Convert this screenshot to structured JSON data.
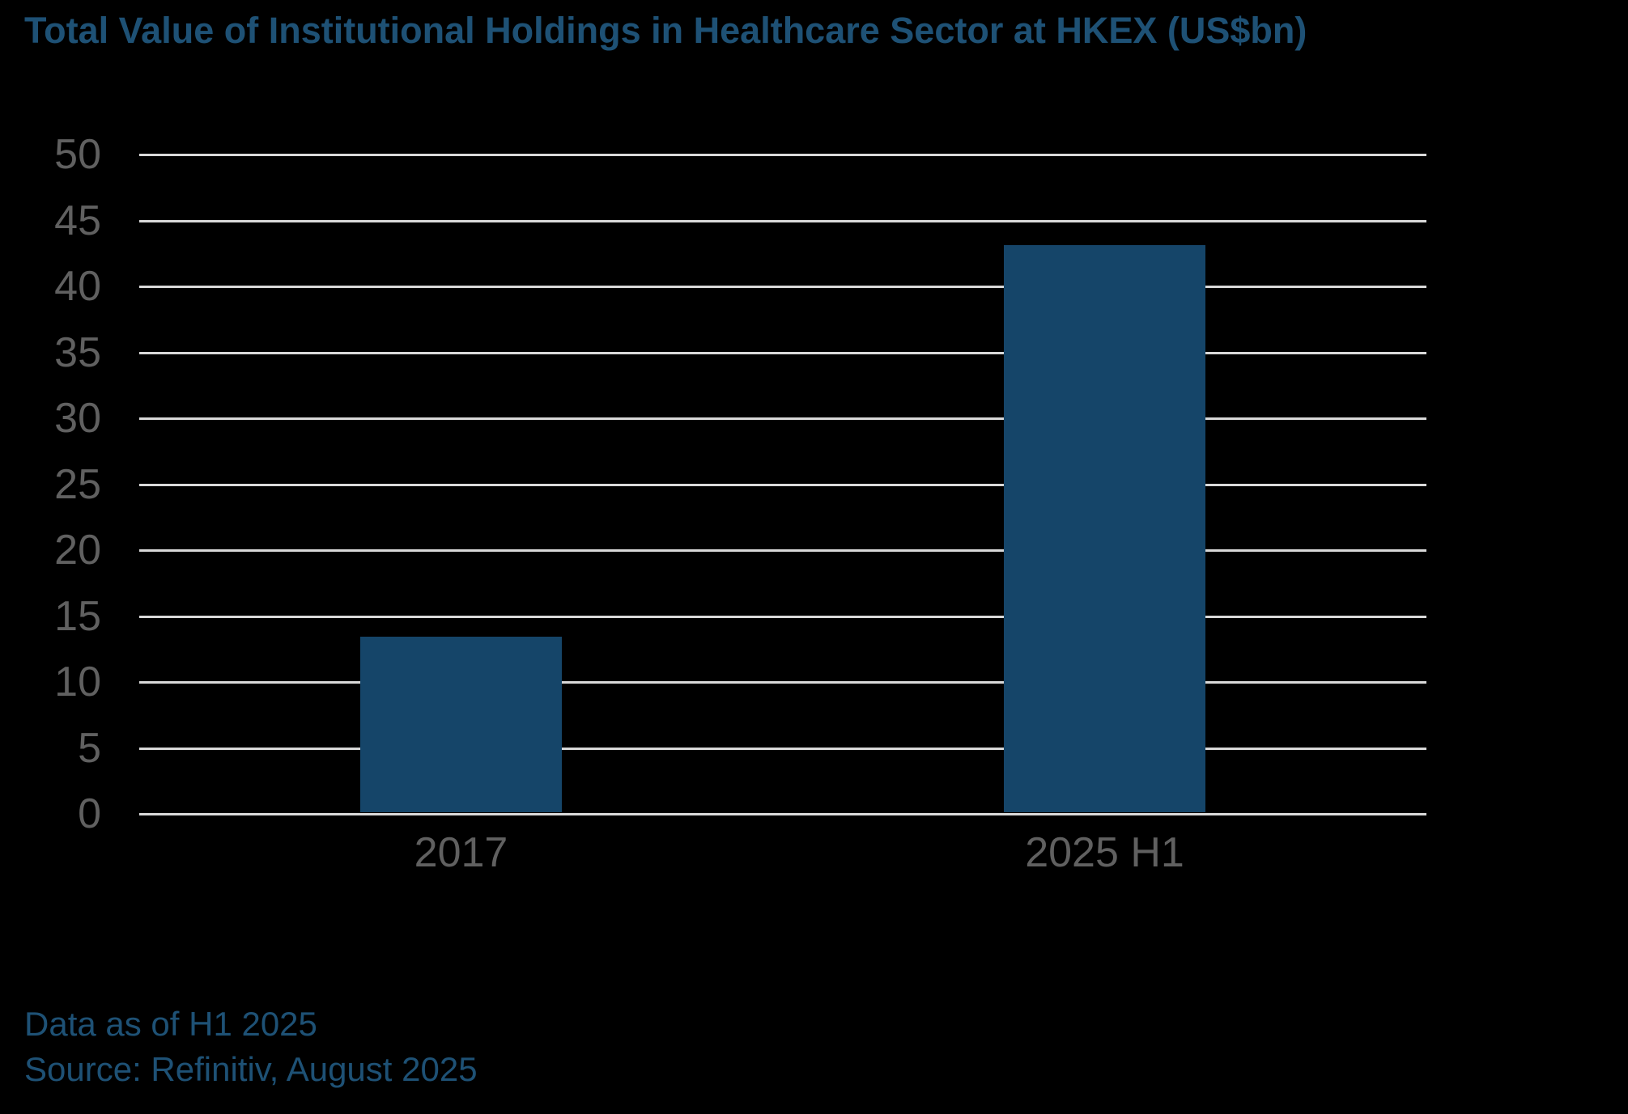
{
  "title": "Total Value of Institutional Holdings in Healthcare Sector at HKEX (US$bn)",
  "footer": {
    "line1": "Data as of H1 2025",
    "line2": "Source: Refinitiv, August 2025"
  },
  "colors": {
    "background": "#000000",
    "bar": "#154569",
    "accent_text": "#1E5175",
    "axis_label": "#606060",
    "gridline": "#D9D9D9"
  },
  "chart_data": {
    "type": "bar",
    "categories": [
      "2017",
      "2025 H1"
    ],
    "values": [
      13.3,
      43
    ],
    "title": "Total Value of Institutional Holdings in Healthcare Sector at HKEX (US$bn)",
    "xlabel": "",
    "ylabel": "",
    "ylim": [
      0,
      50
    ],
    "ytick_step": 5,
    "ytick_labels": [
      "0",
      "5",
      "10",
      "15",
      "20",
      "25",
      "30",
      "35",
      "40",
      "45",
      "50"
    ],
    "grid": true,
    "legend": false,
    "annotations": [
      "Data as of H1 2025",
      "Source: Refinitiv, August 2025"
    ]
  }
}
